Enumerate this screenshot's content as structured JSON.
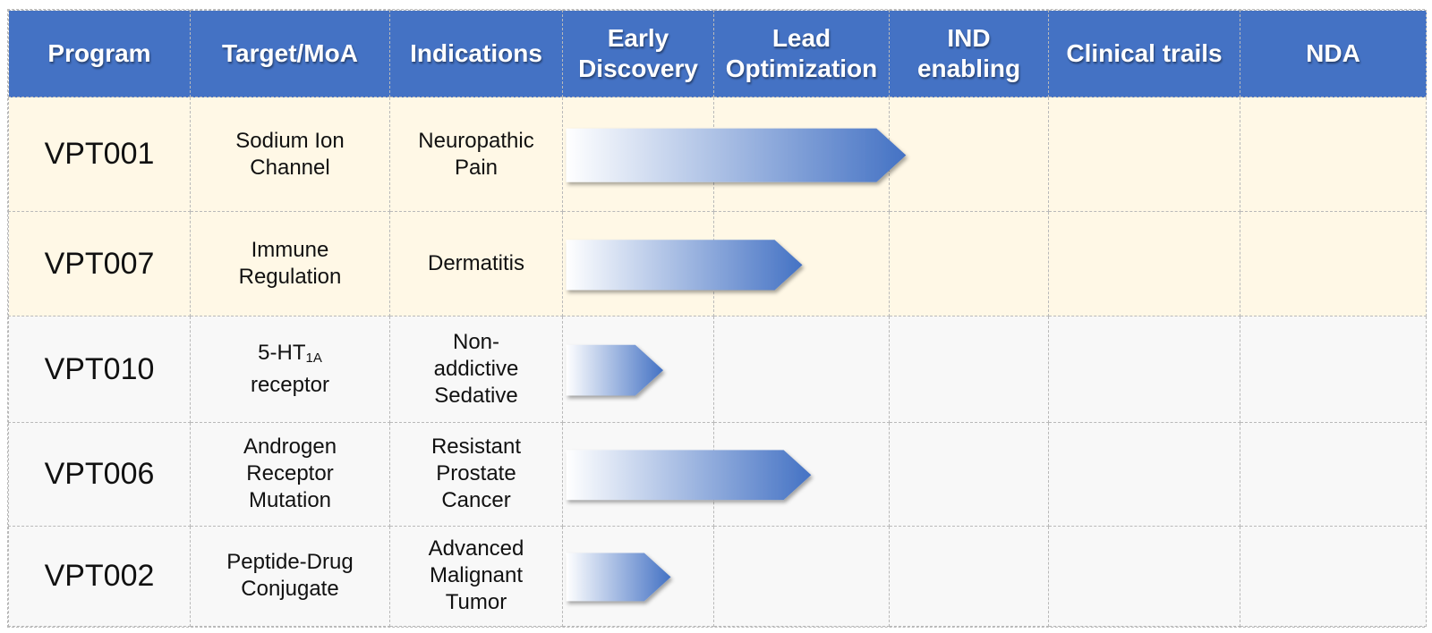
{
  "chart_data": {
    "type": "table",
    "columns": [
      "Program",
      "Target/MoA",
      "Indications",
      "Early Discovery",
      "Lead Optimization",
      "IND enabling",
      "Clinical trails",
      "NDA"
    ],
    "stage_columns": [
      "Early Discovery",
      "Lead Optimization",
      "IND enabling",
      "Clinical trails",
      "NDA"
    ],
    "rows": [
      {
        "program": "VPT001",
        "target_lines": [
          "Sodium Ion",
          "Channel"
        ],
        "indication_lines": [
          "Neuropathic",
          "Pain"
        ],
        "progress": 2.1
      },
      {
        "program": "VPT007",
        "target_lines": [
          "Immune",
          "Regulation"
        ],
        "indication_lines": [
          "Dermatitis"
        ],
        "progress": 1.5
      },
      {
        "program": "VPT010",
        "target_base": "5-HT",
        "target_sub": "1A",
        "target_lines": [
          "receptor"
        ],
        "indication_lines": [
          "Non-",
          "addictive",
          "Sedative"
        ],
        "progress": 0.66
      },
      {
        "program": "VPT006",
        "target_lines": [
          "Androgen",
          "Receptor",
          "Mutation"
        ],
        "indication_lines": [
          "Resistant",
          "Prostate",
          "Cancer"
        ],
        "progress": 1.55
      },
      {
        "program": "VPT002",
        "target_lines": [
          "Peptide-Drug",
          "Conjugate"
        ],
        "indication_lines": [
          "Advanced",
          "Malignant",
          "Tumor"
        ],
        "progress": 0.71
      }
    ]
  },
  "header": {
    "program": "Program",
    "target": "Target/MoA",
    "indications": "Indications",
    "early_discovery": [
      "Early",
      "Discovery"
    ],
    "lead_optimization": [
      "Lead",
      "Optimization"
    ],
    "ind_enabling": [
      "IND",
      "enabling"
    ],
    "clinical_trails": "Clinical trails",
    "nda": "NDA"
  },
  "colors": {
    "header_bg": "#4472c4",
    "cream_row": "#fff8e6",
    "grey_row": "#f8f8f8",
    "bar_start": "#ffffff",
    "bar_end": "#4472c4"
  }
}
